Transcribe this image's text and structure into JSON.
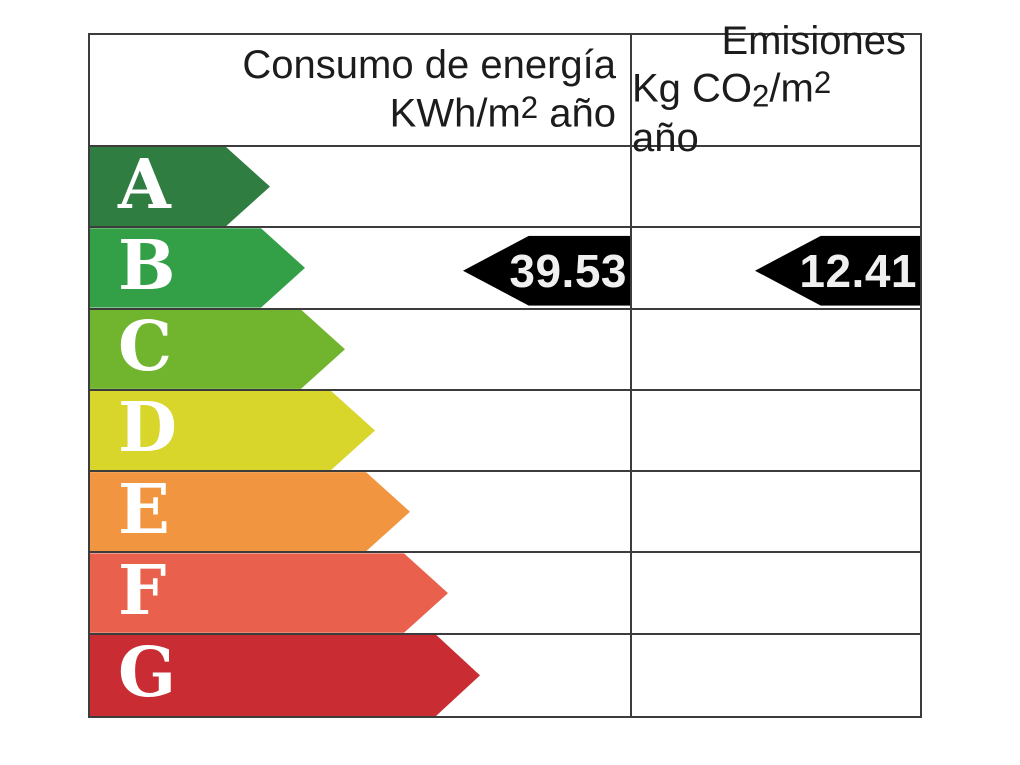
{
  "table": {
    "border_color": "#3c3c3c",
    "headers": {
      "consumo": {
        "line1": "Consumo de energía",
        "line2_segments": [
          {
            "t": "KWh/m",
            "s": "n"
          },
          {
            "t": "2",
            "s": "sup"
          },
          {
            "t": " año",
            "s": "n"
          }
        ]
      },
      "emisiones": {
        "line1": "Emisiones",
        "line2_segments": [
          {
            "t": "Kg CO",
            "s": "n"
          },
          {
            "t": "2",
            "s": "sub"
          },
          {
            "t": "/m",
            "s": "n"
          },
          {
            "t": "2",
            "s": "sup"
          },
          {
            "t": " año",
            "s": "n"
          }
        ]
      }
    },
    "ratings": [
      {
        "letter": "A",
        "color": "#2f7d41",
        "arrow_width": 180
      },
      {
        "letter": "B",
        "color": "#33a047",
        "arrow_width": 215
      },
      {
        "letter": "C",
        "color": "#71b52f",
        "arrow_width": 255
      },
      {
        "letter": "D",
        "color": "#d8d52b",
        "arrow_width": 285
      },
      {
        "letter": "E",
        "color": "#f29540",
        "arrow_width": 320
      },
      {
        "letter": "F",
        "color": "#e9604d",
        "arrow_width": 358
      },
      {
        "letter": "G",
        "color": "#c92d33",
        "arrow_width": 390
      }
    ],
    "values": {
      "rating_row": "B",
      "consumo": "39.53",
      "emisiones": "12.41",
      "arrow_color": "#000000",
      "consumo_arrow_width": 167,
      "emisiones_arrow_width": 165
    }
  },
  "chart_data": {
    "type": "table",
    "title": "Etiqueta de eficiencia energética",
    "columns": [
      "Consumo de energía KWh/m2 año",
      "Emisiones Kg CO2/m2 año"
    ],
    "scale_categories": [
      "A",
      "B",
      "C",
      "D",
      "E",
      "F",
      "G"
    ],
    "scale_colors": [
      "#2f7d41",
      "#33a047",
      "#71b52f",
      "#d8d52b",
      "#f29540",
      "#e9604d",
      "#c92d33"
    ],
    "rated_letter": "B",
    "values": {
      "consumo_kwh_m2_ano": 39.53,
      "emisiones_kg_co2_m2_ano": 12.41
    },
    "legend_position": "none",
    "grid": true
  }
}
